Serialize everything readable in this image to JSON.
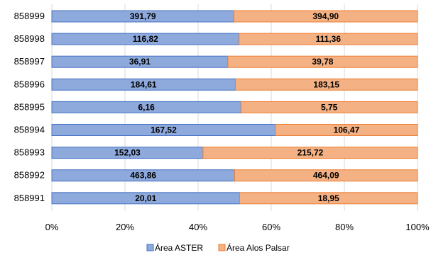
{
  "chart_data": {
    "type": "bar",
    "orientation": "horizontal",
    "stacking": "percent",
    "categories": [
      "858999",
      "858998",
      "858997",
      "858996",
      "858995",
      "858994",
      "858993",
      "858992",
      "858991"
    ],
    "series": [
      {
        "name": "Área ASTER",
        "values": [
          391.79,
          116.82,
          36.91,
          184.61,
          6.16,
          167.52,
          152.03,
          463.86,
          20.01
        ],
        "labels": [
          "391,79",
          "116,82",
          "36,91",
          "184,61",
          "6,16",
          "167,52",
          "152,03",
          "463,86",
          "20,01"
        ],
        "color": "#8EA9DB",
        "border": "#4472C4"
      },
      {
        "name": "Área Alos Palsar",
        "values": [
          394.9,
          111.36,
          39.78,
          183.15,
          5.75,
          106.47,
          215.72,
          464.09,
          18.95
        ],
        "labels": [
          "394,90",
          "111,36",
          "39,78",
          "183,15",
          "5,75",
          "106,47",
          "215,72",
          "464,09",
          "18,95"
        ],
        "color": "#F4B183",
        "border": "#ED7D31"
      }
    ],
    "x_ticks": [
      "0%",
      "20%",
      "40%",
      "60%",
      "80%",
      "100%"
    ],
    "xlim": [
      0,
      100
    ],
    "grid": "vertical",
    "legend_position": "bottom"
  }
}
